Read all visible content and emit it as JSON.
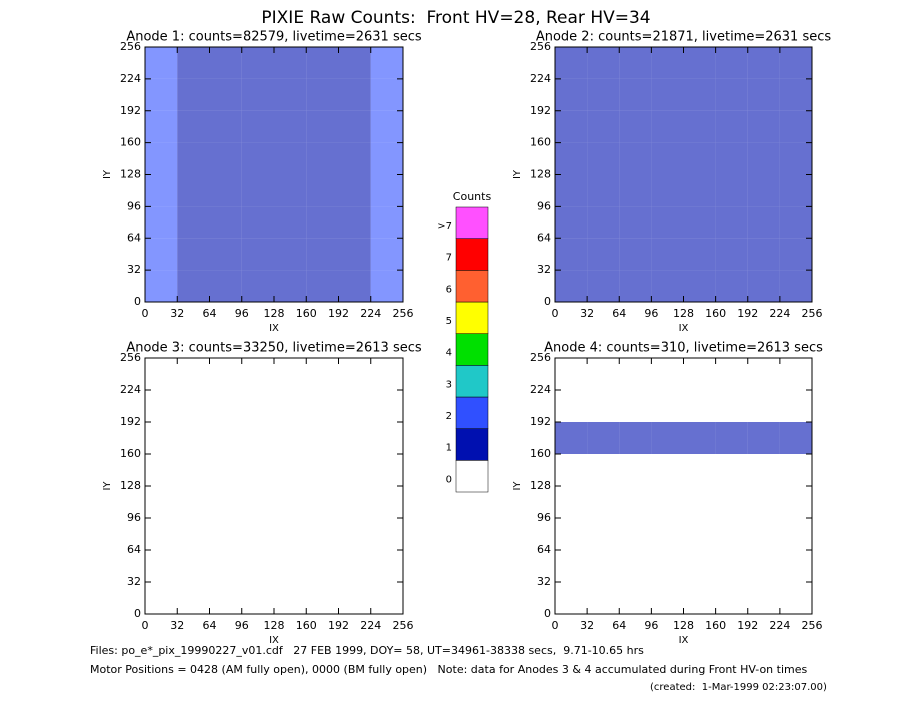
{
  "title": "PIXIE Raw Counts:  Front HV=28, Rear HV=34",
  "notes": [
    "Files: po_e*_pix_19990227_v01.cdf   27 FEB 1999, DOY= 58, UT=34961-38338 secs,  9.71-10.65 hrs",
    "Motor Positions = 0428 (AM fully open), 0000 (BM fully open)   Note: data for Anodes 3 & 4 accumulated during Front HV-on times",
    "(created:  1-Mar-1999 02:23:07.00)"
  ],
  "chart_data": [
    {
      "type": "heatmap",
      "title": "Anode 1: counts=82579, livetime=2631 secs",
      "xlabel": "IX",
      "ylabel": "IY",
      "xlim": [
        0,
        256
      ],
      "ylim": [
        0,
        256
      ],
      "xticks": [
        0,
        32,
        64,
        96,
        128,
        160,
        192,
        224,
        256
      ],
      "yticks": [
        0,
        32,
        64,
        96,
        128,
        160,
        192,
        224,
        256
      ],
      "values": [
        [
          1.8,
          0.8,
          0.6,
          0.9,
          0.5,
          0.8,
          0.9,
          1.5
        ],
        [
          1.6,
          0.5,
          0.3,
          0.4,
          0.3,
          0.4,
          0.6,
          1.4
        ],
        [
          1.7,
          0.5,
          0.3,
          0.3,
          0.2,
          0.3,
          0.6,
          1.3
        ],
        [
          1.8,
          0.6,
          0.3,
          0.8,
          0.3,
          0.8,
          0.8,
          1.3
        ],
        [
          1.8,
          0.6,
          0.4,
          0.8,
          0.3,
          0.7,
          0.8,
          1.4
        ],
        [
          1.6,
          0.6,
          0.4,
          0.4,
          0.3,
          0.5,
          0.7,
          1.3
        ],
        [
          1.7,
          0.7,
          0.5,
          0.5,
          0.3,
          0.5,
          0.7,
          1.4
        ],
        [
          1.9,
          0.9,
          0.7,
          0.6,
          0.4,
          0.6,
          0.9,
          1.6
        ]
      ]
    },
    {
      "type": "heatmap",
      "title": "Anode 2: counts=21871, livetime=2631 secs",
      "xlabel": "IX",
      "ylabel": "IY",
      "xlim": [
        0,
        256
      ],
      "ylim": [
        0,
        256
      ],
      "xticks": [
        0,
        32,
        64,
        96,
        128,
        160,
        192,
        224,
        256
      ],
      "yticks": [
        0,
        32,
        64,
        96,
        128,
        160,
        192,
        224,
        256
      ],
      "values": [
        [
          0.8,
          0.4,
          0.3,
          0.3,
          0.3,
          0.3,
          0.4,
          0.8
        ],
        [
          0.5,
          0.3,
          0.2,
          0.2,
          0.1,
          0.2,
          0.3,
          0.5
        ],
        [
          0.4,
          0.2,
          0.2,
          0.2,
          0.1,
          0.2,
          0.2,
          0.4
        ],
        [
          0.4,
          0.3,
          0.2,
          0.3,
          0.1,
          0.2,
          0.3,
          0.4
        ],
        [
          0.4,
          0.3,
          0.2,
          0.3,
          0.1,
          0.2,
          0.3,
          0.4
        ],
        [
          0.4,
          0.3,
          0.2,
          0.2,
          0.1,
          0.2,
          0.3,
          0.5
        ],
        [
          0.5,
          0.3,
          0.2,
          0.2,
          0.1,
          0.2,
          0.3,
          0.5
        ],
        [
          0.6,
          0.4,
          0.3,
          0.3,
          0.2,
          0.3,
          0.4,
          0.7
        ]
      ]
    },
    {
      "type": "heatmap",
      "title": "Anode 3: counts=33250, livetime=2613 secs",
      "xlabel": "IX",
      "ylabel": "IY",
      "xlim": [
        0,
        256
      ],
      "ylim": [
        0,
        256
      ],
      "xticks": [
        0,
        32,
        64,
        96,
        128,
        160,
        192,
        224,
        256
      ],
      "yticks": [
        0,
        32,
        64,
        96,
        128,
        160,
        192,
        224,
        256
      ],
      "values": [
        [
          0,
          0,
          0,
          0,
          0,
          0,
          0,
          0
        ],
        [
          0,
          0,
          0,
          0,
          0,
          0,
          0,
          0
        ],
        [
          0,
          0,
          0,
          0,
          0,
          0,
          0,
          0
        ],
        [
          0,
          0,
          0,
          0,
          0,
          0,
          0,
          0
        ],
        [
          0,
          0,
          0,
          0,
          0,
          0,
          0,
          0
        ],
        [
          0,
          0,
          0,
          0,
          0,
          0,
          0,
          0
        ],
        [
          0,
          0,
          0,
          0,
          0,
          0,
          0,
          0
        ],
        [
          0,
          0,
          0,
          0,
          0,
          0,
          0,
          0
        ]
      ]
    },
    {
      "type": "heatmap",
      "title": "Anode 4: counts=310, livetime=2613 secs",
      "xlabel": "IX",
      "ylabel": "IY",
      "xlim": [
        0,
        256
      ],
      "ylim": [
        0,
        256
      ],
      "xticks": [
        0,
        32,
        64,
        96,
        128,
        160,
        192,
        224,
        256
      ],
      "yticks": [
        0,
        32,
        64,
        96,
        128,
        160,
        192,
        224,
        256
      ],
      "values": [
        [
          0,
          0,
          0,
          0,
          0,
          0,
          0,
          0
        ],
        [
          0,
          0,
          0,
          0,
          0,
          0,
          0,
          0
        ],
        [
          0,
          0,
          0,
          0,
          0,
          0,
          0,
          0
        ],
        [
          0,
          0,
          0,
          0,
          0,
          0,
          0,
          0
        ],
        [
          0,
          0,
          0,
          0,
          0,
          0,
          0,
          0
        ],
        [
          0.1,
          0.1,
          0.1,
          0.1,
          0.1,
          0.1,
          0.1,
          0.1
        ],
        [
          0,
          0,
          0,
          0,
          0,
          0,
          0,
          0
        ],
        [
          0,
          0,
          0,
          0,
          0,
          0,
          0,
          0
        ]
      ]
    },
    {
      "type": "colorbar",
      "title": "Counts",
      "categories": [
        "0",
        "1",
        "2",
        "3",
        "4",
        "5",
        "6",
        "7",
        ">7"
      ],
      "colors": [
        "#ffffff",
        "#0010b0",
        "#3050ff",
        "#20c8c8",
        "#00e000",
        "#ffff00",
        "#ff6030",
        "#ff0000",
        "#ff50ff"
      ]
    }
  ]
}
